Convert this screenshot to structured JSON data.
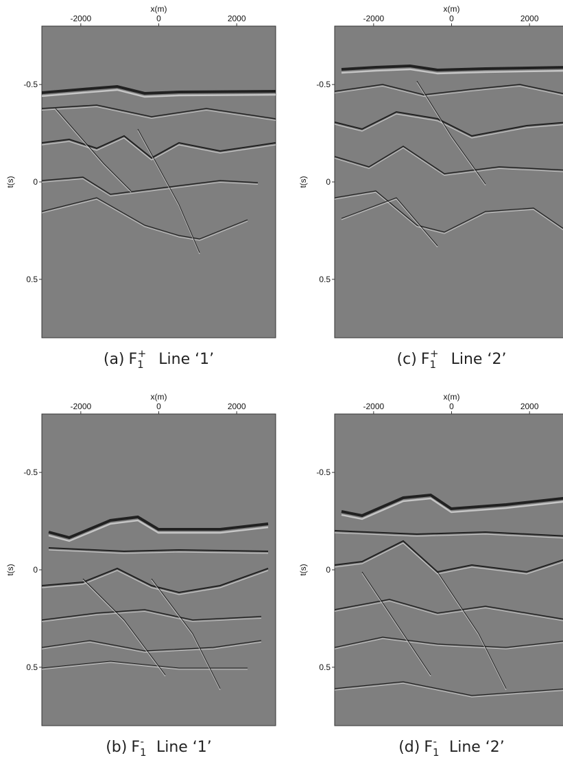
{
  "chart_data": [
    {
      "type": "image",
      "caption": {
        "label": "(a)",
        "symbol": "F",
        "subscript": "1",
        "superscript": "+",
        "line": "Line ‘1’"
      },
      "xlabel": "x(m)",
      "ylabel": "t(s)",
      "xlim": [
        -3000,
        3000
      ],
      "ylim": [
        -0.8,
        0.8
      ],
      "y_inverted": true,
      "xticks": [
        -2000,
        0,
        2000
      ],
      "yticks": [
        -0.5,
        0,
        0.5
      ]
    },
    {
      "type": "image",
      "caption": {
        "label": "(c)",
        "symbol": "F",
        "subscript": "1",
        "superscript": "+",
        "line": "Line ‘2’"
      },
      "xlabel": "x(m)",
      "ylabel": "t(s)",
      "xlim": [
        -3000,
        3000
      ],
      "ylim": [
        -0.8,
        0.8
      ],
      "y_inverted": true,
      "xticks": [
        -2000,
        0,
        2000
      ],
      "yticks": [
        -0.5,
        0,
        0.5
      ]
    },
    {
      "type": "image",
      "caption": {
        "label": "(b)",
        "symbol": "F",
        "subscript": "1",
        "superscript": "-",
        "line": "Line ‘1’"
      },
      "xlabel": "x(m)",
      "ylabel": "t(s)",
      "xlim": [
        -3000,
        3000
      ],
      "ylim": [
        -0.8,
        0.8
      ],
      "y_inverted": true,
      "xticks": [
        -2000,
        0,
        2000
      ],
      "yticks": [
        -0.5,
        0,
        0.5
      ]
    },
    {
      "type": "image",
      "caption": {
        "label": "(d)",
        "symbol": "F",
        "subscript": "1",
        "superscript": "-",
        "line": "Line ‘2’"
      },
      "xlabel": "x(m)",
      "ylabel": "t(s)",
      "xlim": [
        -3000,
        3000
      ],
      "ylim": [
        -0.8,
        0.8
      ],
      "y_inverted": true,
      "xticks": [
        -2000,
        0,
        2000
      ],
      "yticks": [
        -0.5,
        0,
        0.5
      ]
    }
  ]
}
